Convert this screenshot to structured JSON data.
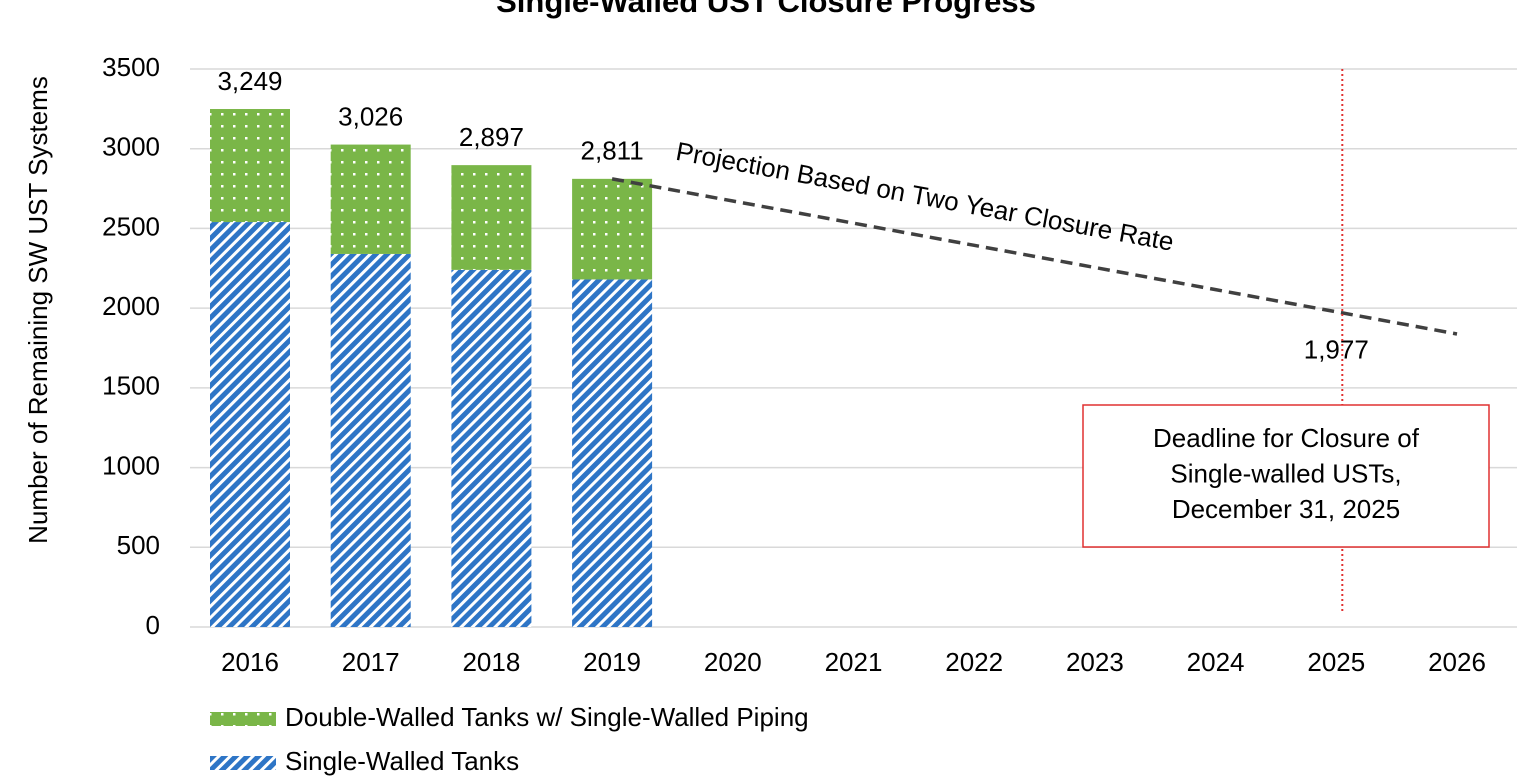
{
  "chart_data": {
    "type": "stacked_bar",
    "title": "Single-Walled UST Closure Progress",
    "y_axis_label": "Number of Remaining SW UST Systems",
    "categories": [
      "2016",
      "2017",
      "2018",
      "2019",
      "2020",
      "2021",
      "2022",
      "2023",
      "2024",
      "2025",
      "2026"
    ],
    "series": [
      {
        "name": "Single-Walled Tanks",
        "color": "#2e75c6",
        "values": [
          2540,
          2340,
          2240,
          2180,
          null,
          null,
          null,
          null,
          null,
          null,
          null
        ]
      },
      {
        "name": "Double-Walled Tanks w/ Single-Walled Piping",
        "color": "#7ab648",
        "values": [
          709,
          686,
          657,
          631,
          null,
          null,
          null,
          null,
          null,
          null,
          null
        ]
      }
    ],
    "totals": [
      {
        "value": 3249,
        "label": "3,249"
      },
      {
        "value": 3026,
        "label": "3,026"
      },
      {
        "value": 2897,
        "label": "2,897"
      },
      {
        "value": 2811,
        "label": "2,811"
      }
    ],
    "projection": {
      "name": "Projection Based on Two Year Closure Rate",
      "color": "#404040",
      "values": [
        null,
        null,
        null,
        2811,
        2672,
        2533,
        2394,
        2255,
        2116,
        1977,
        1838
      ],
      "value_labels": [
        null,
        null,
        null,
        null,
        null,
        null,
        null,
        null,
        null,
        "1,977",
        null
      ]
    },
    "deadline": {
      "x": "2025",
      "color": "#e03030",
      "text": [
        "Deadline for Closure of",
        "Single-walled USTs,",
        "December 31, 2025"
      ]
    },
    "ylim": [
      0,
      3500
    ],
    "yticks": [
      0,
      500,
      1000,
      1500,
      2000,
      2500,
      3000,
      3500
    ],
    "grid": true
  }
}
